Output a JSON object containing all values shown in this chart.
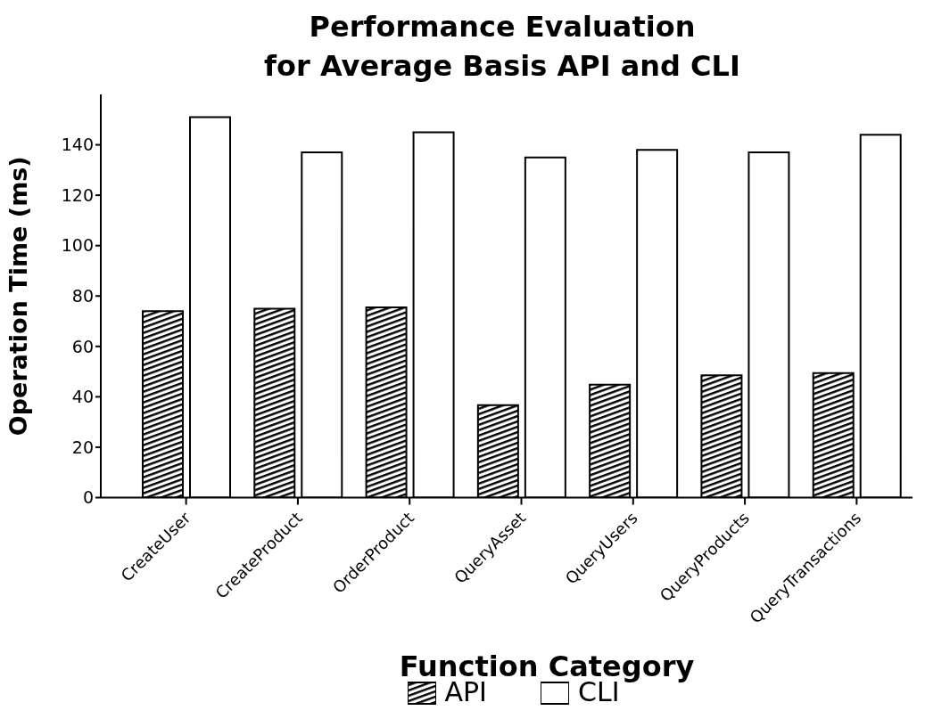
{
  "chart_data": {
    "type": "bar",
    "title": "Performance Evaluation\nfor Average Basis API and CLI",
    "xlabel": "Function Category",
    "ylabel": "Operation Time (ms)",
    "categories": [
      "CreateUser",
      "CreateProduct",
      "OrderProduct",
      "QueryAsset",
      "QueryUsers",
      "QueryProducts",
      "QueryTransactions"
    ],
    "series": [
      {
        "name": "API",
        "color": "#000000",
        "values": [
          74,
          75,
          75.5,
          36.7,
          44.8,
          48.5,
          49.4
        ]
      },
      {
        "name": "CLI",
        "color": "#ffffff",
        "values": [
          151,
          137,
          145,
          135,
          138,
          137,
          144
        ]
      }
    ],
    "ylim": [
      0,
      160
    ],
    "yticks": [
      0,
      20,
      40,
      60,
      80,
      100,
      120,
      140
    ],
    "grid": false,
    "legend": "bottom"
  }
}
